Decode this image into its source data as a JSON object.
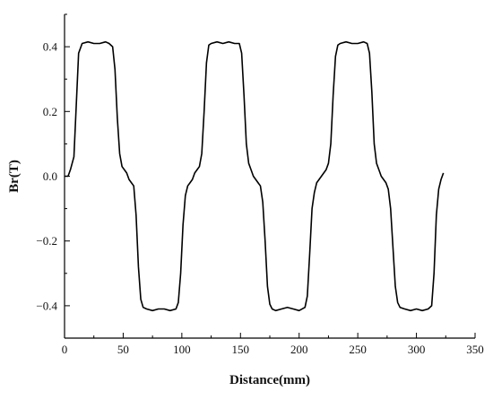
{
  "chart_data": {
    "type": "line",
    "title": "",
    "xlabel": "Distance(mm)",
    "ylabel": "Br(T)",
    "xlim": [
      0,
      350
    ],
    "ylim": [
      -0.5,
      0.5
    ],
    "xticks": [
      0,
      50,
      100,
      150,
      200,
      250,
      300,
      350
    ],
    "yticks": [
      -0.4,
      -0.2,
      0.0,
      0.2,
      0.4
    ],
    "xtick_labels": [
      "0",
      "50",
      "100",
      "150",
      "200",
      "250",
      "300",
      "350"
    ],
    "ytick_labels": [
      "−0.4",
      "−0.2",
      "0.0",
      "0.2",
      "0.4"
    ],
    "grid": false,
    "legend": "none",
    "series": [
      {
        "color": "#000000",
        "x": [
          0,
          3,
          5,
          8,
          10,
          12,
          15,
          20,
          25,
          30,
          35,
          38,
          41,
          43,
          45,
          47,
          49,
          51,
          53,
          55,
          57,
          59,
          61,
          63,
          65,
          67,
          70,
          75,
          80,
          85,
          90,
          95,
          97,
          99,
          101,
          103,
          105,
          107,
          109,
          111,
          113,
          115,
          117,
          119,
          121,
          123,
          125,
          130,
          135,
          140,
          145,
          149,
          151,
          153,
          155,
          157,
          159,
          161,
          163,
          165,
          167,
          169,
          171,
          173,
          175,
          177,
          180,
          185,
          190,
          195,
          200,
          205,
          207,
          209,
          211,
          213,
          215,
          217,
          219,
          221,
          223,
          225,
          227,
          229,
          231,
          233,
          235,
          240,
          245,
          250,
          255,
          258,
          260,
          262,
          264,
          266,
          268,
          270,
          272,
          274,
          276,
          278,
          280,
          282,
          284,
          286,
          290,
          295,
          300,
          305,
          310,
          313,
          315,
          317,
          319,
          321,
          323
        ],
        "y": [
          0.0,
          0.0,
          0.02,
          0.06,
          0.22,
          0.38,
          0.41,
          0.415,
          0.41,
          0.41,
          0.415,
          0.41,
          0.4,
          0.33,
          0.18,
          0.07,
          0.03,
          0.02,
          0.01,
          -0.01,
          -0.02,
          -0.03,
          -0.12,
          -0.28,
          -0.38,
          -0.405,
          -0.41,
          -0.415,
          -0.41,
          -0.41,
          -0.415,
          -0.41,
          -0.39,
          -0.3,
          -0.15,
          -0.06,
          -0.03,
          -0.02,
          -0.01,
          0.01,
          0.02,
          0.03,
          0.07,
          0.2,
          0.35,
          0.405,
          0.41,
          0.415,
          0.41,
          0.415,
          0.41,
          0.41,
          0.38,
          0.25,
          0.1,
          0.04,
          0.02,
          0.0,
          -0.01,
          -0.02,
          -0.03,
          -0.08,
          -0.2,
          -0.34,
          -0.395,
          -0.41,
          -0.415,
          -0.41,
          -0.405,
          -0.41,
          -0.415,
          -0.405,
          -0.37,
          -0.24,
          -0.1,
          -0.05,
          -0.02,
          -0.01,
          0.0,
          0.01,
          0.02,
          0.04,
          0.1,
          0.25,
          0.37,
          0.405,
          0.41,
          0.415,
          0.41,
          0.41,
          0.415,
          0.41,
          0.38,
          0.26,
          0.1,
          0.04,
          0.02,
          0.0,
          -0.01,
          -0.02,
          -0.04,
          -0.1,
          -0.22,
          -0.34,
          -0.39,
          -0.405,
          -0.41,
          -0.415,
          -0.41,
          -0.415,
          -0.41,
          -0.4,
          -0.3,
          -0.12,
          -0.04,
          -0.01,
          0.01
        ]
      }
    ]
  }
}
